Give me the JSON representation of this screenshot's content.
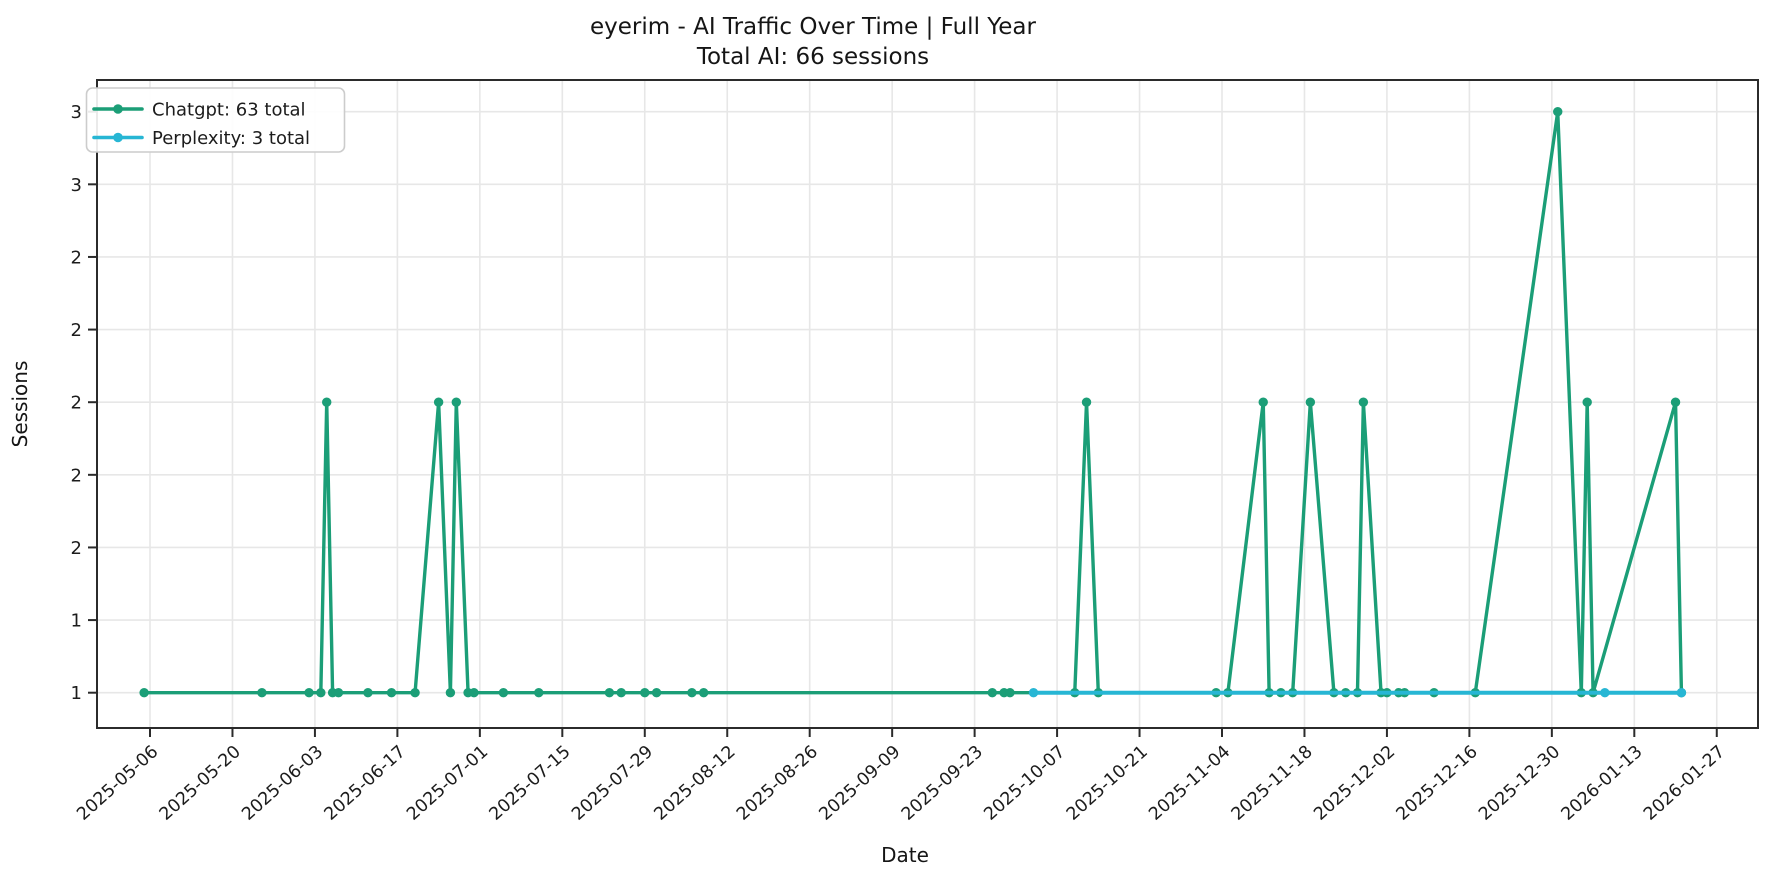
{
  "chart_data": {
    "type": "line",
    "title": "eyerim - AI Traffic Over Time | Full Year",
    "subtitle": "Total AI: 66 sessions",
    "xlabel": "Date",
    "ylabel": "Sessions",
    "grid": true,
    "legend_position": "upper-left",
    "background_color": "#ffffff",
    "grid_color": "#e7e7e7",
    "spine_color": "#2b2b2b",
    "text_color": "#1c1c1c",
    "x_domain": [
      "2025-04-27",
      "2026-02-03"
    ],
    "y_domain": [
      0.878,
      3.11
    ],
    "x_ticks": [
      "2025-05-06",
      "2025-05-20",
      "2025-06-03",
      "2025-06-17",
      "2025-07-01",
      "2025-07-15",
      "2025-07-29",
      "2025-08-12",
      "2025-08-26",
      "2025-09-09",
      "2025-09-23",
      "2025-10-07",
      "2025-10-21",
      "2025-11-04",
      "2025-11-18",
      "2025-12-02",
      "2025-12-16",
      "2025-12-30",
      "2026-01-13",
      "2026-01-27"
    ],
    "y_ticks": [
      {
        "value": 1.0,
        "label": "1"
      },
      {
        "value": 1.25,
        "label": "1"
      },
      {
        "value": 1.5,
        "label": "2"
      },
      {
        "value": 1.75,
        "label": "2"
      },
      {
        "value": 2.0,
        "label": "2"
      },
      {
        "value": 2.25,
        "label": "2"
      },
      {
        "value": 2.5,
        "label": "2"
      },
      {
        "value": 2.75,
        "label": "3"
      },
      {
        "value": 3.0,
        "label": "3"
      }
    ],
    "series": [
      {
        "name": "Chatgpt",
        "legend": "Chatgpt: 63 total",
        "total": 63,
        "color": "#1b9e77",
        "points": [
          [
            "2025-05-05",
            1
          ],
          [
            "2025-05-25",
            1
          ],
          [
            "2025-06-02",
            1
          ],
          [
            "2025-06-04",
            1
          ],
          [
            "2025-06-05",
            2
          ],
          [
            "2025-06-06",
            1
          ],
          [
            "2025-06-07",
            1
          ],
          [
            "2025-06-12",
            1
          ],
          [
            "2025-06-16",
            1
          ],
          [
            "2025-06-20",
            1
          ],
          [
            "2025-06-24",
            2
          ],
          [
            "2025-06-26",
            1
          ],
          [
            "2025-06-27",
            2
          ],
          [
            "2025-06-29",
            1
          ],
          [
            "2025-06-30",
            1
          ],
          [
            "2025-07-05",
            1
          ],
          [
            "2025-07-11",
            1
          ],
          [
            "2025-07-23",
            1
          ],
          [
            "2025-07-25",
            1
          ],
          [
            "2025-07-29",
            1
          ],
          [
            "2025-07-31",
            1
          ],
          [
            "2025-08-06",
            1
          ],
          [
            "2025-08-08",
            1
          ],
          [
            "2025-09-26",
            1
          ],
          [
            "2025-09-28",
            1
          ],
          [
            "2025-09-29",
            1
          ],
          [
            "2025-10-10",
            1
          ],
          [
            "2025-10-12",
            2
          ],
          [
            "2025-10-14",
            1
          ],
          [
            "2025-11-03",
            1
          ],
          [
            "2025-11-05",
            1
          ],
          [
            "2025-11-11",
            2
          ],
          [
            "2025-11-12",
            1
          ],
          [
            "2025-11-14",
            1
          ],
          [
            "2025-11-16",
            1
          ],
          [
            "2025-11-19",
            2
          ],
          [
            "2025-11-23",
            1
          ],
          [
            "2025-11-25",
            1
          ],
          [
            "2025-11-27",
            1
          ],
          [
            "2025-11-28",
            2
          ],
          [
            "2025-12-01",
            1
          ],
          [
            "2025-12-02",
            1
          ],
          [
            "2025-12-04",
            1
          ],
          [
            "2025-12-05",
            1
          ],
          [
            "2025-12-10",
            1
          ],
          [
            "2025-12-17",
            1
          ],
          [
            "2025-12-31",
            3
          ],
          [
            "2026-01-04",
            1
          ],
          [
            "2026-01-05",
            2
          ],
          [
            "2026-01-06",
            1
          ],
          [
            "2026-01-20",
            2
          ],
          [
            "2026-01-21",
            1
          ]
        ]
      },
      {
        "name": "Perplexity",
        "legend": "Perplexity: 3 total",
        "total": 3,
        "color": "#27b6d4",
        "points": [
          [
            "2025-10-03",
            1
          ],
          [
            "2026-01-08",
            1
          ],
          [
            "2026-01-21",
            1
          ]
        ]
      }
    ]
  }
}
